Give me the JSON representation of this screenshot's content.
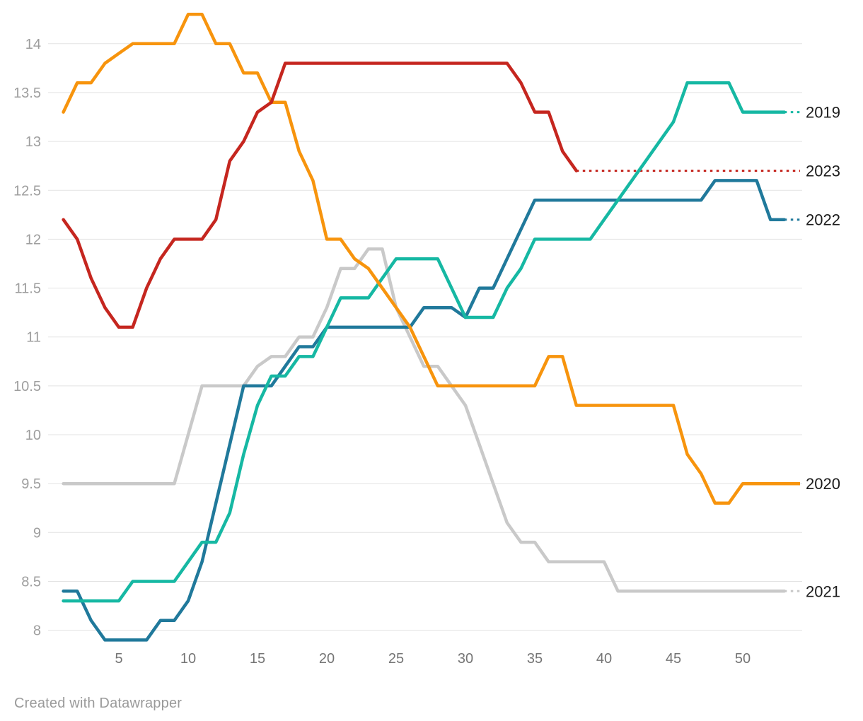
{
  "footer": {
    "credit": "Created with Datawrapper"
  },
  "chart_data": {
    "type": "line",
    "title": "",
    "xlabel": "",
    "ylabel": "",
    "x_unit": "week",
    "x_ticks": [
      5,
      10,
      15,
      20,
      25,
      30,
      35,
      40,
      45,
      50
    ],
    "y_ticks": [
      8,
      8.5,
      9,
      9.5,
      10,
      10.5,
      11,
      11.5,
      12,
      12.5,
      13,
      13.5,
      14
    ],
    "ylim": [
      7.75,
      14.45
    ],
    "xlim": [
      1,
      53
    ],
    "grid": true,
    "legend_position": "right-edge-labels",
    "series": [
      {
        "name": "2021",
        "color": "#c9c9c9",
        "tail": "dotted",
        "x_start": 1,
        "values": [
          9.5,
          9.5,
          9.5,
          9.5,
          9.5,
          9.5,
          9.5,
          9.5,
          9.5,
          10.0,
          10.5,
          10.5,
          10.5,
          10.5,
          10.7,
          10.8,
          10.8,
          11.0,
          11.0,
          11.3,
          11.7,
          11.7,
          11.9,
          11.9,
          11.3,
          11.0,
          10.7,
          10.7,
          10.5,
          10.3,
          9.9,
          9.5,
          9.1,
          8.9,
          8.9,
          8.7,
          8.7,
          8.7,
          8.7,
          8.7,
          8.4,
          8.4,
          8.4,
          8.4,
          8.4,
          8.4,
          8.4,
          8.4,
          8.4,
          8.4,
          8.4,
          8.4,
          8.4
        ]
      },
      {
        "name": "2022",
        "color": "#20799b",
        "tail": "dotted",
        "x_start": 1,
        "values": [
          8.4,
          8.4,
          8.1,
          7.9,
          7.9,
          7.9,
          7.9,
          8.1,
          8.1,
          8.3,
          8.7,
          9.3,
          9.9,
          10.5,
          10.5,
          10.5,
          10.7,
          10.9,
          10.9,
          11.1,
          11.1,
          11.1,
          11.1,
          11.1,
          11.1,
          11.1,
          11.3,
          11.3,
          11.3,
          11.2,
          11.5,
          11.5,
          11.8,
          12.1,
          12.4,
          12.4,
          12.4,
          12.4,
          12.4,
          12.4,
          12.4,
          12.4,
          12.4,
          12.4,
          12.4,
          12.4,
          12.4,
          12.6,
          12.6,
          12.6,
          12.6,
          12.2,
          12.2
        ]
      },
      {
        "name": "2019",
        "color": "#16b8a3",
        "tail": "dotted",
        "x_start": 1,
        "values": [
          8.3,
          8.3,
          8.3,
          8.3,
          8.3,
          8.5,
          8.5,
          8.5,
          8.5,
          8.7,
          8.9,
          8.9,
          9.2,
          9.8,
          10.3,
          10.6,
          10.6,
          10.8,
          10.8,
          11.1,
          11.4,
          11.4,
          11.4,
          11.6,
          11.8,
          11.8,
          11.8,
          11.8,
          11.5,
          11.2,
          11.2,
          11.2,
          11.5,
          11.7,
          12.0,
          12.0,
          12.0,
          12.0,
          12.0,
          12.2,
          12.4,
          12.6,
          12.8,
          13.0,
          13.2,
          13.6,
          13.6,
          13.6,
          13.6,
          13.3,
          13.3,
          13.3,
          13.3
        ]
      },
      {
        "name": "2020",
        "color": "#f7940d",
        "tail": "solid",
        "x_start": 1,
        "values": [
          13.3,
          13.6,
          13.6,
          13.8,
          13.9,
          14.0,
          14.0,
          14.0,
          14.0,
          14.3,
          14.3,
          14.0,
          14.0,
          13.7,
          13.7,
          13.4,
          13.4,
          12.9,
          12.6,
          12.0,
          12.0,
          11.8,
          11.7,
          11.5,
          11.3,
          11.1,
          10.8,
          10.5,
          10.5,
          10.5,
          10.5,
          10.5,
          10.5,
          10.5,
          10.5,
          10.8,
          10.8,
          10.3,
          10.3,
          10.3,
          10.3,
          10.3,
          10.3,
          10.3,
          10.3,
          9.8,
          9.6,
          9.3,
          9.3,
          9.5,
          9.5,
          9.5,
          9.5
        ]
      },
      {
        "name": "2023",
        "color": "#c5261f",
        "tail": "dotted",
        "x_start": 1,
        "values": [
          12.2,
          12.0,
          11.6,
          11.3,
          11.1,
          11.1,
          11.5,
          11.8,
          12.0,
          12.0,
          12.0,
          12.2,
          12.8,
          13.0,
          13.3,
          13.4,
          13.8,
          13.8,
          13.8,
          13.8,
          13.8,
          13.8,
          13.8,
          13.8,
          13.8,
          13.8,
          13.8,
          13.8,
          13.8,
          13.8,
          13.8,
          13.8,
          13.8,
          13.6,
          13.3,
          13.3,
          12.9,
          12.7
        ]
      }
    ]
  }
}
